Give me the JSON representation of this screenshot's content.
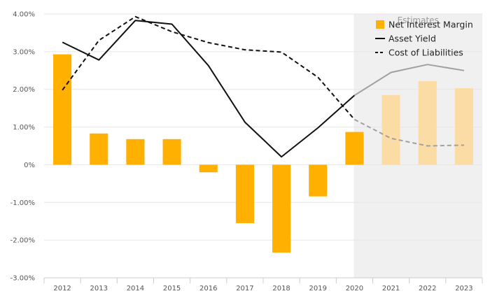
{
  "chart_data": {
    "type": "bar",
    "categories": [
      "2012",
      "2013",
      "2014",
      "2015",
      "2016",
      "2017",
      "2018",
      "2019",
      "2020",
      "2021",
      "2022",
      "2023"
    ],
    "y_ticks": [
      -3,
      -2,
      -1,
      0,
      1,
      2,
      3,
      4
    ],
    "y_tick_labels": [
      "-3.00%",
      "-2.00%",
      "-1.00%",
      "0%",
      "1.00%",
      "2.00%",
      "3.00%",
      "4.00%"
    ],
    "ylim": [
      -3,
      4
    ],
    "grid": true,
    "legend_position": "top-right",
    "estimates_label": "Estimates",
    "estimates_from_index": 9,
    "series": [
      {
        "name": "Net Interest Margin",
        "kind": "bar",
        "color": "#ffb000",
        "estimate_color": "#fbdca4",
        "values": [
          2.93,
          0.83,
          0.68,
          0.68,
          -0.2,
          -1.55,
          -2.33,
          -0.84,
          0.87,
          1.85,
          2.22,
          2.03
        ]
      },
      {
        "name": "Asset Yield",
        "kind": "line",
        "style": "solid",
        "color": "#111111",
        "estimate_color": "#a0a0a0",
        "values": [
          3.25,
          2.78,
          3.83,
          3.73,
          2.63,
          1.13,
          0.21,
          0.98,
          1.84,
          2.45,
          2.66,
          2.5
        ]
      },
      {
        "name": "Cost of Liabilities",
        "kind": "line",
        "style": "dashed",
        "color": "#111111",
        "estimate_color": "#a0a0a0",
        "values": [
          1.98,
          3.3,
          3.93,
          3.53,
          3.24,
          3.05,
          2.99,
          2.32,
          1.2,
          0.7,
          0.5,
          0.52
        ]
      }
    ]
  }
}
